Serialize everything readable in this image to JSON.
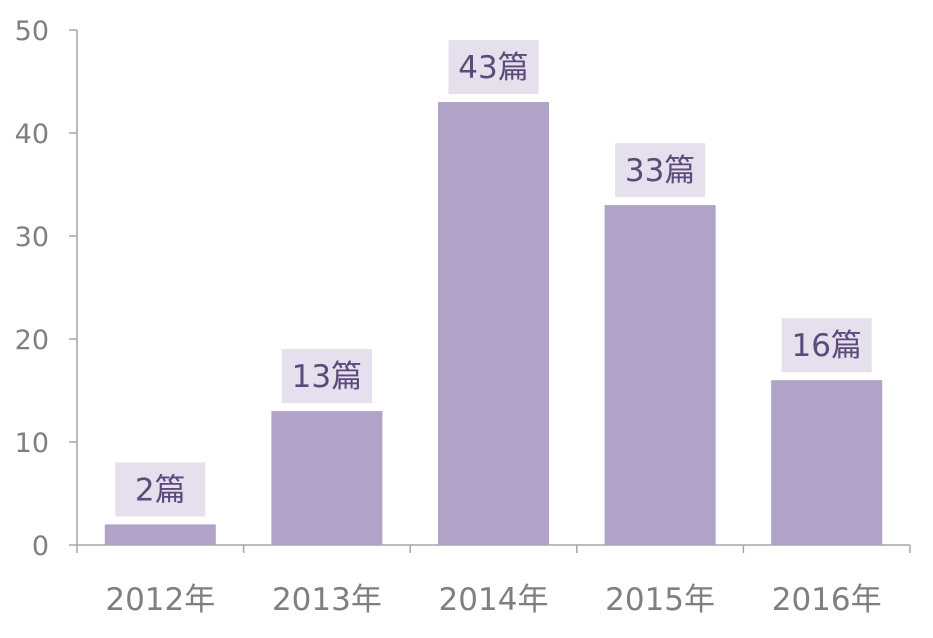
{
  "chart_data": {
    "type": "bar",
    "categories": [
      "2012年",
      "2013年",
      "2014年",
      "2015年",
      "2016年"
    ],
    "values": [
      2,
      13,
      43,
      33,
      16
    ],
    "data_labels": [
      "2篇",
      "13篇",
      "43篇",
      "33篇",
      "16篇"
    ],
    "title": "",
    "xlabel": "",
    "ylabel": "",
    "ylim": [
      0,
      50
    ],
    "yticks": [
      "0",
      "10",
      "20",
      "30",
      "40",
      "50"
    ],
    "grid": false,
    "legend": "none",
    "colors": {
      "bar": "#b1a2c8",
      "label_bg": "#e5dfee",
      "label_text": "#5b4a7a",
      "axis": "#a6a6a6",
      "tick_text": "#7f7f7f"
    }
  }
}
